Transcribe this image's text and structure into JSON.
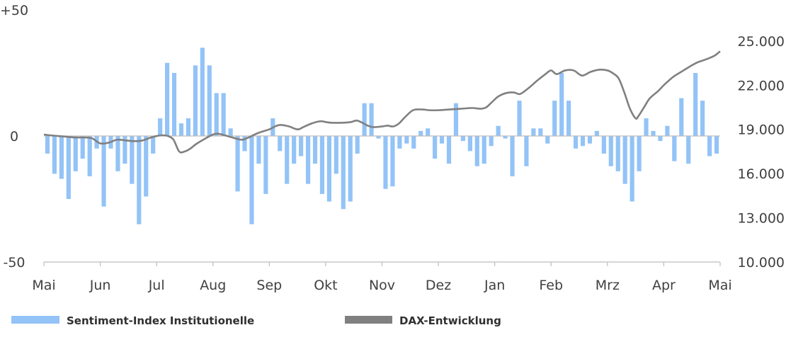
{
  "chart_data": {
    "type": "bar+line",
    "colors": {
      "bars": "#93c3f7",
      "line": "#808080",
      "axis": "#bdbdbd"
    },
    "months": [
      "Mai",
      "Jun",
      "Jul",
      "Aug",
      "Sep",
      "Okt",
      "Nov",
      "Dez",
      "Jan",
      "Feb",
      "Mrz",
      "Apr",
      "Mai"
    ],
    "left_axis": {
      "labels": [
        "+50",
        "0",
        "-50"
      ],
      "values": [
        50,
        0,
        -50
      ],
      "ylim": [
        -50,
        50
      ]
    },
    "right_axis": {
      "labels": [
        "25.000",
        "22.000",
        "19.000",
        "16.000",
        "13.000",
        "10.000"
      ],
      "values": [
        25000,
        22000,
        19000,
        16000,
        13000,
        10000
      ],
      "ylim": [
        10000,
        26000
      ]
    },
    "series": [
      {
        "name": "Sentiment-Index Institutionelle",
        "type": "bar",
        "axis": "left",
        "values": [
          -7,
          -15,
          -17,
          -25,
          -14,
          -9,
          -16,
          -5,
          -28,
          -5,
          -14,
          -11,
          -19,
          -35,
          -24,
          -7,
          7,
          29,
          25,
          5,
          7,
          28,
          35,
          28,
          17,
          17,
          3,
          -22,
          -6,
          -35,
          -11,
          -23,
          7,
          -6,
          -19,
          -11,
          -8,
          -19,
          -11,
          -23,
          -26,
          -15,
          -29,
          -26,
          -7,
          13,
          13,
          -1,
          -21,
          -20,
          -5,
          -3,
          -5,
          2,
          3,
          -9,
          -3,
          -11,
          13,
          -2,
          -6,
          -12,
          -11,
          -4,
          4,
          -1,
          -16,
          14,
          -12,
          3,
          3,
          -3,
          14,
          25,
          14,
          -5,
          -4,
          -3,
          2,
          -7,
          -12,
          -14,
          -19,
          -26,
          -14,
          7,
          2,
          -2,
          4,
          -10,
          15,
          -11,
          25,
          14,
          -8,
          -7
        ]
      },
      {
        "name": "DAX-Entwicklung",
        "type": "line",
        "axis": "right",
        "x": [
          0,
          0.1,
          0.25,
          0.4,
          0.55,
          0.7,
          0.85,
          1,
          1.15,
          1.3,
          1.45,
          1.6,
          1.75,
          1.9,
          2,
          2.1,
          2.2,
          2.3,
          2.4,
          2.5,
          2.6,
          2.7,
          2.85,
          3,
          3.1,
          3.3,
          3.5,
          3.6,
          3.8,
          4,
          4.1,
          4.2,
          4.35,
          4.5,
          4.6,
          4.75,
          4.9,
          5,
          5.1,
          5.3,
          5.45,
          5.55,
          5.65,
          5.75,
          5.85,
          6,
          6.1,
          6.2,
          6.3,
          6.4,
          6.55,
          6.7,
          6.85,
          7,
          7.2,
          7.4,
          7.6,
          7.75,
          7.85,
          7.95,
          8.05,
          8.15,
          8.25,
          8.35,
          8.45,
          8.6,
          8.75,
          8.9,
          9,
          9.1,
          9.25,
          9.4,
          9.55,
          9.7,
          9.85,
          10,
          10.1,
          10.2,
          10.3,
          10.4,
          10.5,
          10.55,
          10.65,
          10.75,
          10.9,
          11,
          11.1,
          11.2,
          11.35,
          11.5,
          11.6,
          11.75,
          11.9,
          12
        ],
        "values": [
          18650,
          18600,
          18550,
          18500,
          18450,
          18450,
          18400,
          18050,
          18100,
          18300,
          18250,
          18200,
          18250,
          18450,
          18550,
          18600,
          18550,
          18300,
          17500,
          17500,
          17700,
          18000,
          18350,
          18650,
          18700,
          18500,
          18300,
          18400,
          18750,
          19000,
          19200,
          19300,
          19200,
          19000,
          19150,
          19400,
          19550,
          19500,
          19450,
          19450,
          19500,
          19600,
          19450,
          19250,
          19150,
          19200,
          19250,
          19200,
          19400,
          19800,
          20300,
          20350,
          20300,
          20300,
          20350,
          20400,
          20450,
          20400,
          20500,
          20850,
          21200,
          21400,
          21500,
          21500,
          21400,
          21800,
          22300,
          22750,
          23000,
          22750,
          23000,
          23000,
          22650,
          22900,
          23050,
          23000,
          22800,
          22450,
          21500,
          20400,
          19750,
          19900,
          20500,
          21100,
          21600,
          22000,
          22350,
          22650,
          23000,
          23350,
          23550,
          23750,
          24000,
          24300
        ]
      }
    ]
  }
}
